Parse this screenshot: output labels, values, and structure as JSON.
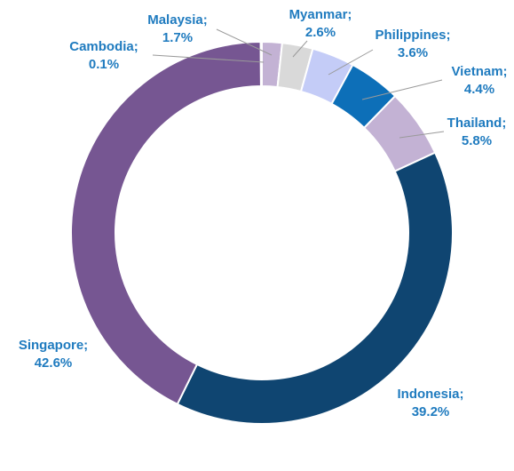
{
  "chart_data": {
    "type": "pie",
    "donut": true,
    "label_color": "#1f7bbf",
    "leader_color": "#9a9a9a",
    "slices": [
      {
        "name": "Malaysia;",
        "value": 1.7,
        "label": "1.7%",
        "color": "#c3b2d4"
      },
      {
        "name": "Myanmar;",
        "value": 2.6,
        "label": "2.6%",
        "color": "#d9d9d9"
      },
      {
        "name": "Philippines;",
        "value": 3.6,
        "label": "3.6%",
        "color": "#c4ccf7"
      },
      {
        "name": "Vietnam;",
        "value": 4.4,
        "label": "4.4%",
        "color": "#0d6fb8"
      },
      {
        "name": "Thailand;",
        "value": 5.8,
        "label": "5.8%",
        "color": "#c3b2d4"
      },
      {
        "name": "Indonesia;",
        "value": 39.2,
        "label": "39.2%",
        "color": "#0f4571"
      },
      {
        "name": "Singapore;",
        "value": 42.6,
        "label": "42.6%",
        "color": "#765692"
      },
      {
        "name": "Cambodia;",
        "value": 0.1,
        "label": "0.1%",
        "color": "#765692"
      }
    ]
  }
}
